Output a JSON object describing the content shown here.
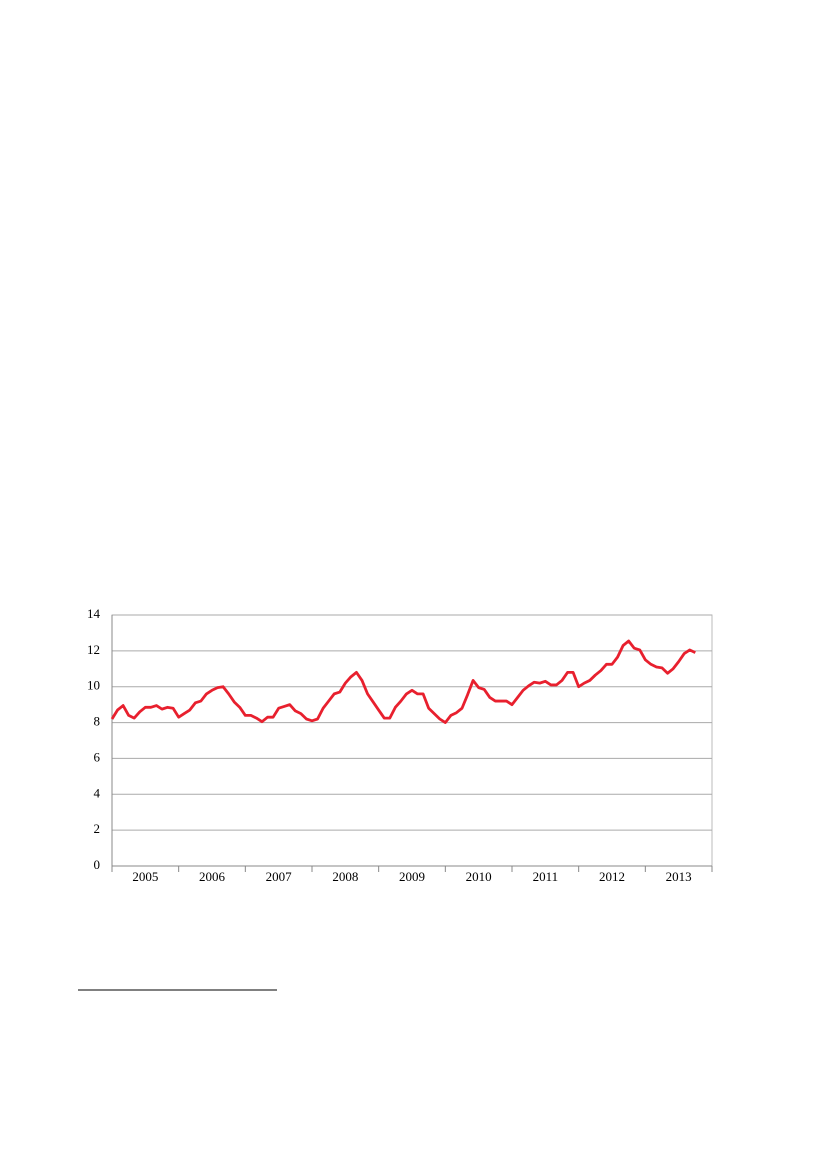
{
  "chart_data": {
    "type": "line",
    "categories": [
      null,
      null,
      null,
      null,
      null,
      "2005",
      null,
      null,
      null,
      null,
      null,
      null,
      null,
      null,
      null,
      null,
      null,
      "2006",
      null,
      null,
      null,
      null,
      null,
      null,
      null,
      null,
      null,
      null,
      null,
      "2007",
      null,
      null,
      null,
      null,
      null,
      null,
      null,
      null,
      null,
      null,
      null,
      "2008",
      null,
      null,
      null,
      null,
      null,
      null,
      null,
      null,
      null,
      null,
      null,
      "2009",
      null,
      null,
      null,
      null,
      null,
      null,
      null,
      null,
      null,
      null,
      null,
      "2010",
      null,
      null,
      null,
      null,
      null,
      null,
      null,
      null,
      null,
      null,
      null,
      "2011",
      null,
      null,
      null,
      null,
      null,
      null,
      null,
      null,
      null,
      null,
      null,
      "2012",
      null,
      null,
      null,
      null,
      null,
      null,
      null,
      null,
      null,
      null,
      null,
      "2013",
      null,
      null,
      null,
      null
    ],
    "series": [
      {
        "color": "#e8202e",
        "values": [
          8.2,
          8.7,
          8.95,
          8.4,
          8.25,
          8.6,
          8.85,
          8.85,
          8.95,
          8.75,
          8.85,
          8.8,
          8.3,
          8.5,
          8.7,
          9.1,
          9.2,
          9.6,
          9.8,
          9.95,
          10.0,
          9.6,
          9.15,
          8.85,
          8.4,
          8.4,
          8.25,
          8.05,
          8.3,
          8.3,
          8.8,
          8.9,
          9.0,
          8.65,
          8.5,
          8.2,
          8.1,
          8.2,
          8.8,
          9.2,
          9.6,
          9.7,
          10.2,
          10.55,
          10.8,
          10.35,
          9.6,
          9.15,
          8.7,
          8.25,
          8.25,
          8.85,
          9.2,
          9.6,
          9.8,
          9.6,
          9.6,
          8.8,
          8.5,
          8.2,
          8.0,
          8.4,
          8.55,
          8.8,
          9.55,
          10.35,
          9.95,
          9.85,
          9.4,
          9.2,
          9.2,
          9.2,
          9.0,
          9.4,
          9.8,
          10.05,
          10.25,
          10.2,
          10.3,
          10.1,
          10.1,
          10.35,
          10.8,
          10.8,
          10.0,
          10.2,
          10.35,
          10.65,
          10.9,
          11.25,
          11.25,
          11.65,
          12.3,
          12.55,
          12.15,
          12.05,
          11.5,
          11.25,
          11.1,
          11.05,
          10.75,
          11.0,
          11.4,
          11.85,
          12.05,
          11.9
        ]
      }
    ],
    "ylim": [
      0,
      14
    ],
    "yticks": [
      0,
      2,
      4,
      6,
      8,
      10,
      12,
      14
    ],
    "grid": true
  }
}
